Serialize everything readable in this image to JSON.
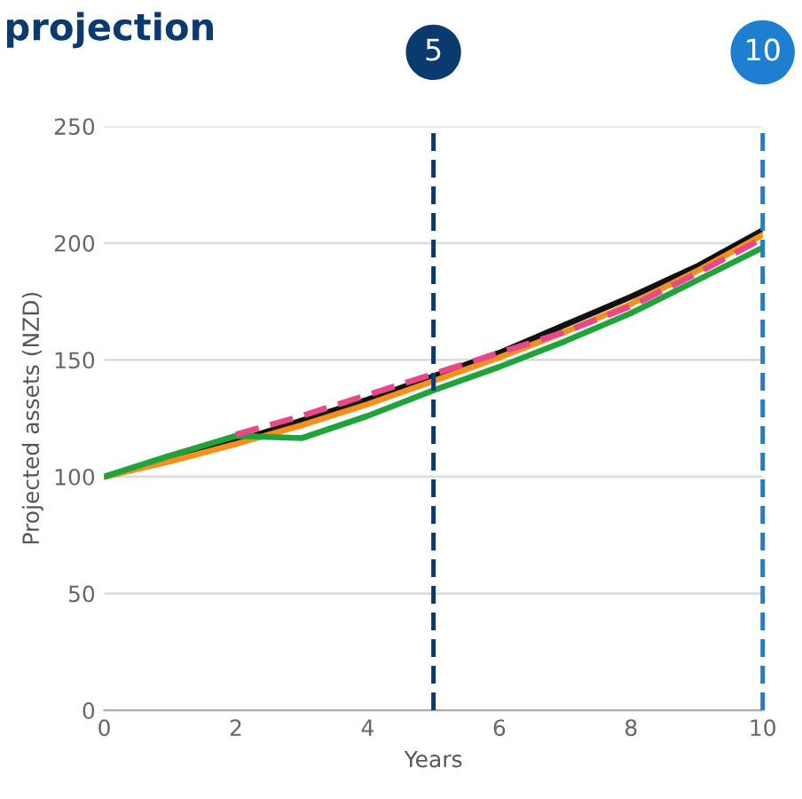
{
  "chart_data": {
    "type": "line",
    "title": "projection",
    "xlabel": "Years",
    "ylabel": "Projected assets (NZD)",
    "x": [
      0,
      1,
      2,
      3,
      4,
      5,
      6,
      7,
      8,
      9,
      10
    ],
    "series": [
      {
        "color": "#111111",
        "values": [
          100,
          107,
          115,
          124,
          133,
          143,
          153,
          165,
          177,
          190,
          205.5
        ]
      },
      {
        "color": "#f5901e",
        "values": [
          100,
          106.5,
          114,
          122,
          131,
          141,
          151,
          162,
          174,
          188,
          203.5
        ]
      },
      {
        "color": "#1fa33a",
        "values": [
          100,
          109,
          117.5,
          116.5,
          126,
          137,
          147,
          158,
          170,
          184,
          198
        ]
      },
      {
        "color": "#e8488a",
        "line_style": "dashed",
        "x": [
          2,
          3,
          4,
          5,
          6,
          7,
          8,
          9,
          10
        ],
        "values": [
          118,
          126,
          135,
          144,
          153,
          162,
          173,
          187,
          202
        ]
      }
    ],
    "xlim": [
      0,
      10
    ],
    "ylim": [
      0,
      250
    ],
    "xticks": [
      0,
      2,
      4,
      6,
      8,
      10
    ],
    "yticks": [
      0,
      50,
      100,
      150,
      200,
      250
    ],
    "grid": "y",
    "line_style": "solid",
    "ref_lines": [
      {
        "axis": "x",
        "value": 5,
        "label": "5",
        "color": "#0b3a6e",
        "line_style": "dashed"
      },
      {
        "axis": "x",
        "value": 10,
        "label": "10",
        "color": "#1e7fd0",
        "line_style": "dashed"
      }
    ]
  }
}
